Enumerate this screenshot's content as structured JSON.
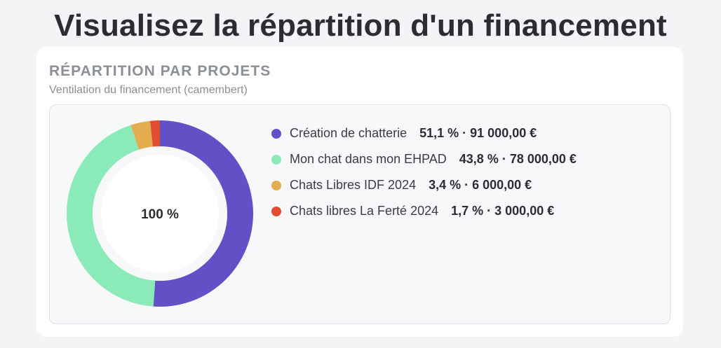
{
  "page": {
    "title": "Visualisez la répartition d'un financement"
  },
  "card": {
    "title": "RÉPARTITION PAR PROJETS",
    "subtitle": "Ventilation du financement (camembert)"
  },
  "chart_data": {
    "type": "pie",
    "center_label": "100 %",
    "categories": [
      "Création de chatterie",
      "Mon chat dans mon EHPAD",
      "Chats Libres IDF 2024",
      "Chats libres La Ferté 2024"
    ],
    "values": [
      91000,
      78000,
      6000,
      3000
    ],
    "percentages": [
      51.1,
      43.8,
      3.4,
      1.7
    ],
    "colors": [
      "#6251c6",
      "#8aeab8",
      "#e3ac4e",
      "#e04d31"
    ],
    "legend_placement": "right",
    "legend": [
      {
        "label": "Création de chatterie",
        "value_text": "51,1 % · 91 000,00 €"
      },
      {
        "label": "Mon chat dans mon EHPAD",
        "value_text": "43,8 % · 78 000,00 €"
      },
      {
        "label": "Chats Libres IDF 2024",
        "value_text": "3,4 % · 6 000,00 €"
      },
      {
        "label": "Chats libres La Ferté 2024",
        "value_text": "1,7 % · 3 000,00 €"
      }
    ]
  }
}
